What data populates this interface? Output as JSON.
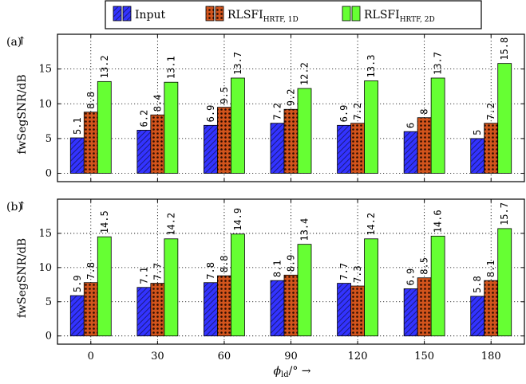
{
  "chart_data": [
    {
      "type": "bar",
      "panel_label": "(a)",
      "categories": [
        "0",
        "30",
        "60",
        "90",
        "120",
        "150",
        "180"
      ],
      "series": [
        {
          "name": "Input",
          "values": [
            5.1,
            6.2,
            6.9,
            7.2,
            6.9,
            6.0,
            5.0
          ]
        },
        {
          "name": "RLSFI_HRTF, 1D",
          "values": [
            8.8,
            8.4,
            9.5,
            9.2,
            7.2,
            8.0,
            7.2
          ]
        },
        {
          "name": "RLSFI_HRTF, 2D",
          "values": [
            13.2,
            13.1,
            13.7,
            12.2,
            13.3,
            13.7,
            15.8
          ]
        }
      ],
      "data_labels": [
        [
          "5.1",
          "6.2",
          "6.9",
          "7.2",
          "6.9",
          "6",
          "5"
        ],
        [
          "8.8",
          "8.4",
          "9.5",
          "9.2",
          "7.2",
          "8",
          "7.2"
        ],
        [
          "13.2",
          "13.1",
          "13.7",
          "12.2",
          "13.3",
          "13.7",
          "15.8"
        ]
      ],
      "ylabel": "fwSegSNR/dB",
      "ylim": [
        -1.2,
        20
      ],
      "yticks": [
        "0",
        "5",
        "10",
        "15"
      ],
      "grid": "dotted"
    },
    {
      "type": "bar",
      "panel_label": "(b)",
      "categories": [
        "0",
        "30",
        "60",
        "90",
        "120",
        "150",
        "180"
      ],
      "series": [
        {
          "name": "Input",
          "values": [
            5.9,
            7.1,
            7.8,
            8.1,
            7.7,
            6.9,
            5.8
          ]
        },
        {
          "name": "RLSFI_HRTF, 1D",
          "values": [
            7.8,
            7.7,
            8.8,
            8.9,
            7.3,
            8.5,
            8.1
          ]
        },
        {
          "name": "RLSFI_HRTF, 2D",
          "values": [
            14.5,
            14.2,
            14.9,
            13.4,
            14.2,
            14.6,
            15.7
          ]
        }
      ],
      "data_labels": [
        [
          "5.9",
          "7.1",
          "7.8",
          "8.1",
          "7.7",
          "6.9",
          "5.8"
        ],
        [
          "7.8",
          "7.7",
          "8.8",
          "8.9",
          "7.3",
          "8.5",
          "8.1"
        ],
        [
          "14.5",
          "14.2",
          "14.9",
          "13.4",
          "14.2",
          "14.6",
          "15.7"
        ]
      ],
      "ylabel": "fwSegSNR/dB",
      "ylim": [
        -1.2,
        20
      ],
      "yticks": [
        "0",
        "5",
        "10",
        "15"
      ],
      "grid": "dotted"
    }
  ],
  "legend": {
    "placement": "top",
    "entries": [
      {
        "main": "Input",
        "sub": "",
        "pattern": "diagonal-lines",
        "color": "#3333ff"
      },
      {
        "main": "RLSFI",
        "sub": "HRTF, 1D",
        "pattern": "dots",
        "color": "#c04010"
      },
      {
        "main": "RLSFI",
        "sub": "HRTF, 2D",
        "pattern": "solid",
        "color": "#66ff33"
      }
    ]
  },
  "xlabel": {
    "symbol": "ϕ",
    "subscript": "ld",
    "unit": "/°",
    "arrow": "→"
  },
  "ylabel_arrow": "→",
  "colors": {
    "input": "#3333ff",
    "rls1d": "#c04010",
    "rls2d": "#66ff33"
  }
}
